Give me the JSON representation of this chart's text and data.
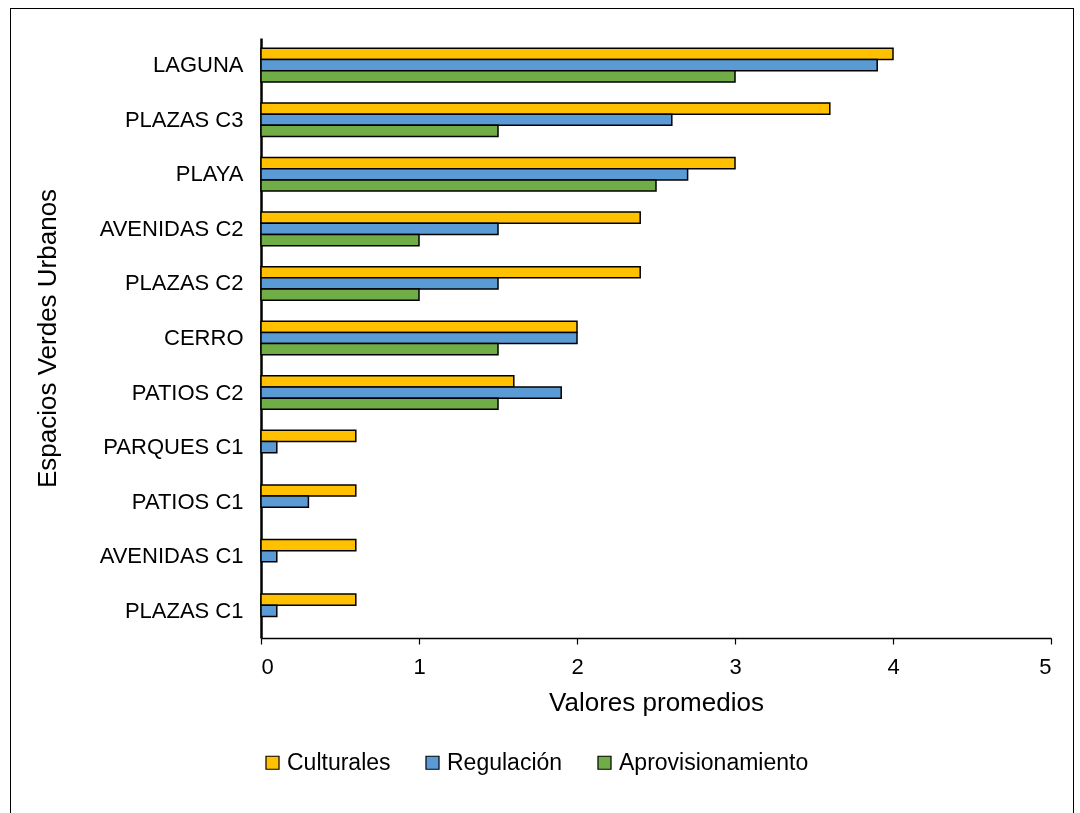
{
  "chart_data": {
    "type": "bar",
    "orientation": "horizontal",
    "xlabel": "Valores promedios",
    "ylabel": "Espacios Verdes Urbanos",
    "categories": [
      "LAGUNA",
      "PLAZAS C3",
      "PLAYA",
      "AVENIDAS C2",
      "PLAZAS C2",
      "CERRO",
      "PATIOS C2",
      "PARQUES C1",
      "PATIOS C1",
      "AVENIDAS C1",
      "PLAZAS C1"
    ],
    "series": [
      {
        "name": "Culturales",
        "color": "#ffc000",
        "values": [
          4.0,
          3.6,
          3.0,
          2.4,
          2.4,
          2.0,
          1.6,
          0.6,
          0.6,
          0.6,
          0.6
        ]
      },
      {
        "name": "Regulación",
        "color": "#5b9bd5",
        "values": [
          3.9,
          2.6,
          2.7,
          1.5,
          1.5,
          2.0,
          1.9,
          0.1,
          0.3,
          0.1,
          0.1
        ]
      },
      {
        "name": "Aprovisionamiento",
        "color": "#70ad47",
        "values": [
          3.0,
          1.5,
          2.5,
          1.0,
          1.0,
          1.5,
          1.5,
          null,
          null,
          null,
          null
        ]
      }
    ],
    "xlim": [
      0,
      5
    ],
    "xticks": [
      0,
      1,
      2,
      3,
      4,
      5
    ],
    "legend": "bottom"
  }
}
